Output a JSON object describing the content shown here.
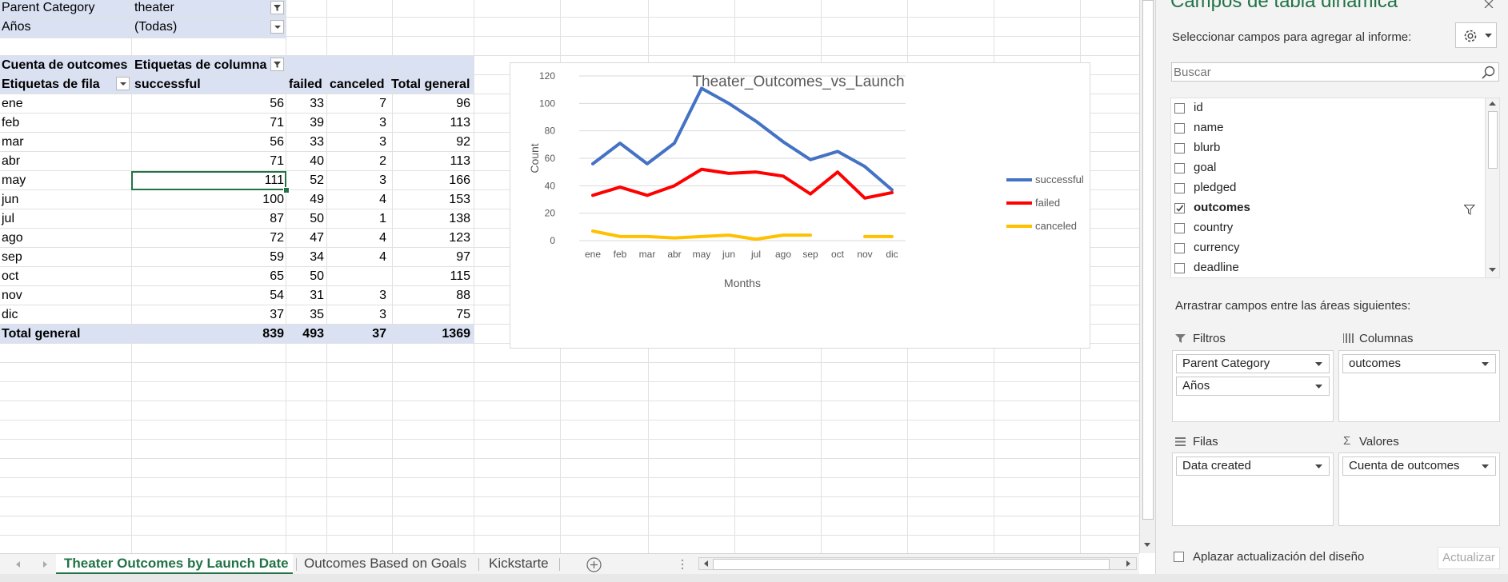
{
  "sheet": {
    "filters": [
      {
        "label": "Parent Category",
        "value": "theater"
      },
      {
        "label": "Años",
        "value": "(Todas)"
      }
    ],
    "pivot": {
      "corner_label": "Cuenta de outcomes",
      "column_labels_header": "Etiquetas de columna",
      "row_labels_header": "Etiquetas de fila",
      "columns": [
        "successful",
        "failed",
        "canceled",
        "Total general"
      ],
      "rows": [
        {
          "label": "ene",
          "values": [
            "56",
            "33",
            "7",
            "96"
          ]
        },
        {
          "label": "feb",
          "values": [
            "71",
            "39",
            "3",
            "113"
          ]
        },
        {
          "label": "mar",
          "values": [
            "56",
            "33",
            "3",
            "92"
          ]
        },
        {
          "label": "abr",
          "values": [
            "71",
            "40",
            "2",
            "113"
          ]
        },
        {
          "label": "may",
          "values": [
            "111",
            "52",
            "3",
            "166"
          ]
        },
        {
          "label": "jun",
          "values": [
            "100",
            "49",
            "4",
            "153"
          ]
        },
        {
          "label": "jul",
          "values": [
            "87",
            "50",
            "1",
            "138"
          ]
        },
        {
          "label": "ago",
          "values": [
            "72",
            "47",
            "4",
            "123"
          ]
        },
        {
          "label": "sep",
          "values": [
            "59",
            "34",
            "4",
            "97"
          ]
        },
        {
          "label": "oct",
          "values": [
            "65",
            "50",
            "",
            "115"
          ]
        },
        {
          "label": "nov",
          "values": [
            "54",
            "31",
            "3",
            "88"
          ]
        },
        {
          "label": "dic",
          "values": [
            "37",
            "35",
            "3",
            "75"
          ]
        }
      ],
      "total": {
        "label": "Total general",
        "values": [
          "839",
          "493",
          "37",
          "1369"
        ]
      }
    }
  },
  "chart_data": {
    "type": "line",
    "title": "Theater_Outcomes_vs_Launch",
    "xlabel": "Months",
    "ylabel": "Count",
    "categories": [
      "ene",
      "feb",
      "mar",
      "abr",
      "may",
      "jun",
      "jul",
      "ago",
      "sep",
      "oct",
      "nov",
      "dic"
    ],
    "ylim": [
      0,
      120
    ],
    "yticks": [
      "0",
      "20",
      "40",
      "60",
      "80",
      "100",
      "120"
    ],
    "grid": true,
    "legend_position": "right",
    "series": [
      {
        "name": "successful",
        "color": "#4472c4",
        "values": [
          56,
          71,
          56,
          71,
          111,
          100,
          87,
          72,
          59,
          65,
          54,
          37
        ]
      },
      {
        "name": "failed",
        "color": "#ff0000",
        "values": [
          33,
          39,
          33,
          40,
          52,
          49,
          50,
          47,
          34,
          50,
          31,
          35
        ]
      },
      {
        "name": "canceled",
        "color": "#ffc000",
        "values": [
          7,
          3,
          3,
          2,
          3,
          4,
          1,
          4,
          4,
          null,
          3,
          3
        ]
      }
    ]
  },
  "tabs": [
    {
      "label": "Theater Outcomes by Launch Date",
      "active": true
    },
    {
      "label": "Outcomes Based on Goals",
      "active": false
    },
    {
      "label": "Kickstarte",
      "active": false
    }
  ],
  "pane": {
    "title": "Campos de tabla dinámica",
    "subtitle": "Seleccionar campos para agregar al informe:",
    "search_placeholder": "Buscar",
    "fields": [
      {
        "name": "id",
        "checked": false,
        "filtered": false
      },
      {
        "name": "name",
        "checked": false,
        "filtered": false
      },
      {
        "name": "blurb",
        "checked": false,
        "filtered": false
      },
      {
        "name": "goal",
        "checked": false,
        "filtered": false
      },
      {
        "name": "pledged",
        "checked": false,
        "filtered": false
      },
      {
        "name": "outcomes",
        "checked": true,
        "filtered": true
      },
      {
        "name": "country",
        "checked": false,
        "filtered": false
      },
      {
        "name": "currency",
        "checked": false,
        "filtered": false
      },
      {
        "name": "deadline",
        "checked": false,
        "filtered": false
      }
    ],
    "drag_label": "Arrastrar campos entre las áreas siguientes:",
    "areas": {
      "filtros": {
        "label": "Filtros",
        "items": [
          "Parent Category",
          "Años"
        ]
      },
      "columnas": {
        "label": "Columnas",
        "items": [
          "outcomes"
        ]
      },
      "filas": {
        "label": "Filas",
        "items": [
          "Data created"
        ]
      },
      "valores": {
        "label": "Valores",
        "items": [
          "Cuenta de outcomes"
        ]
      }
    },
    "defer_label": "Aplazar actualización del diseño",
    "update_label": "Actualizar"
  },
  "colors": {
    "excel_green": "#217346",
    "pivot_band": "#d9e1f2"
  }
}
